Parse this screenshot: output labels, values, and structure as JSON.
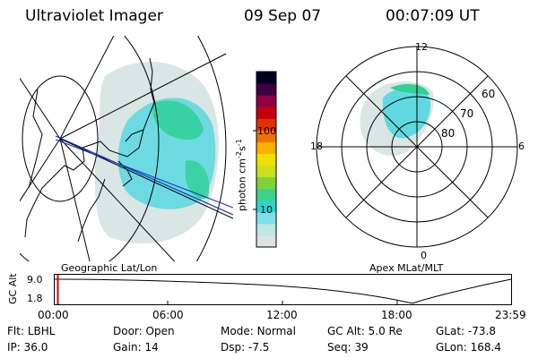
{
  "header": {
    "title": "Ultraviolet Imager",
    "date": "09 Sep 07",
    "time": "00:07:09 UT"
  },
  "geo_map": {
    "label": "Geographic Lat/Lon"
  },
  "apex_map": {
    "label": "Apex MLat/MLT",
    "mlt_labels": {
      "top": "12",
      "left": "18",
      "right": "6",
      "bottom": "0"
    },
    "lat_labels": [
      "60",
      "70",
      "80"
    ]
  },
  "colorbar": {
    "unit_label": "photon cm",
    "unit_exp1": "-2",
    "unit_s": "s",
    "unit_exp2": "-1",
    "ticks": [
      "100",
      "10"
    ],
    "colors": [
      "#dde3e0",
      "#bfe6e4",
      "#7fe0ea",
      "#2dd4d0",
      "#3fd08a",
      "#7fd23a",
      "#c8e020",
      "#f0e000",
      "#f8b000",
      "#f07000",
      "#e03000",
      "#c00010",
      "#900040",
      "#400040",
      "#000020"
    ]
  },
  "timeline": {
    "axis_label": "GC Alt",
    "y_ticks": [
      "9.0",
      "1.8"
    ],
    "x_ticks": [
      "00:00",
      "06:00",
      "12:00",
      "18:00",
      "23:59"
    ],
    "current_fraction": 0.005
  },
  "status": {
    "row1": [
      {
        "label": "Flt:",
        "value": "LBHL"
      },
      {
        "label": "Door:",
        "value": "Open"
      },
      {
        "label": "Mode:",
        "value": "Normal"
      },
      {
        "label": "GC Alt:",
        "value": "5.0 Re"
      },
      {
        "label": "GLat:",
        "value": "-73.8"
      }
    ],
    "row2": [
      {
        "label": "IP:",
        "value": "36.0"
      },
      {
        "label": "Gain:",
        "value": "14"
      },
      {
        "label": "Dsp:",
        "value": "-7.5"
      },
      {
        "label": "Seq:",
        "value": "39"
      },
      {
        "label": "GLon:",
        "value": "168.4"
      }
    ]
  }
}
